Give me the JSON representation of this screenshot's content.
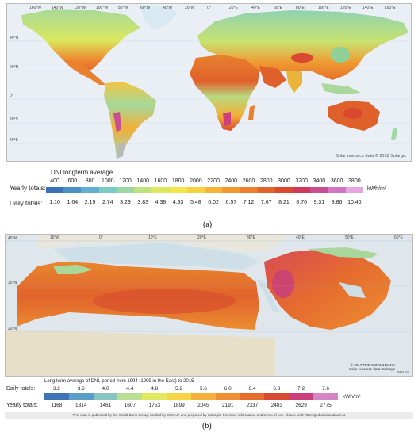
{
  "panel_a": {
    "caption": "(a)",
    "credit": "Solar resource data © 2018 Solargis",
    "legend_title": "DNI longterm average",
    "yearly_label": "Yearly totals:",
    "daily_label": "Daily totals:",
    "unit": "kWh/m²",
    "yearly_values": [
      "400",
      "600",
      "800",
      "1000",
      "1200",
      "1400",
      "1600",
      "1800",
      "2000",
      "2200",
      "2400",
      "2600",
      "2800",
      "3000",
      "3200",
      "3400",
      "3600",
      "3800"
    ],
    "daily_values": [
      "1.10",
      "1.64",
      "2.19",
      "2.74",
      "3.29",
      "3.83",
      "4.38",
      "4.93",
      "5.48",
      "6.02",
      "6.57",
      "7.12",
      "7.67",
      "8.21",
      "8.76",
      "9.31",
      "9.86",
      "10.40"
    ],
    "colors": [
      "#3b6fb6",
      "#4c8fc5",
      "#5fb0cf",
      "#7ccbc6",
      "#9bd8a4",
      "#bde27e",
      "#dbe85e",
      "#f2e64a",
      "#f7d23f",
      "#f6b536",
      "#f19a31",
      "#eb7f2d",
      "#e3642b",
      "#d9482f",
      "#cf3a5c",
      "#c94e93",
      "#d275c2",
      "#e6a6e0"
    ],
    "lat_labels": [
      "40°N",
      "20°N",
      "0°",
      "20°S",
      "40°S"
    ],
    "lon_labels": [
      "160°W",
      "140°W",
      "120°W",
      "100°W",
      "80°W",
      "60°W",
      "40°W",
      "20°W",
      "0°",
      "20°E",
      "40°E",
      "60°E",
      "80°E",
      "100°E",
      "120°E",
      "140°E",
      "160°E"
    ]
  },
  "panel_b": {
    "caption": "(b)",
    "credit": "© 2017 THE WORLD BANK\nSolar resource data: Solargis",
    "scale": "500 km",
    "legend_title": "Long term average of DNI, period from 1994 (1999 in the East) to 2015",
    "daily_label": "Daily totals:",
    "yearly_label": "Yearly totals:",
    "unit": "kWh/m²",
    "daily_values": [
      "3.2",
      "3.6",
      "4.0",
      "4.4",
      "4.8",
      "5.2",
      "5.6",
      "6.0",
      "6.4",
      "6.8",
      "7.2",
      "7.6"
    ],
    "yearly_values": [
      "1168",
      "1314",
      "1461",
      "1607",
      "1753",
      "1899",
      "2045",
      "2191",
      "2337",
      "2483",
      "2629",
      "2775"
    ],
    "colors": [
      "#3e74b5",
      "#5a9dc6",
      "#88c5c0",
      "#b9dd95",
      "#e2e95f",
      "#f6d444",
      "#f4b03a",
      "#ee8f33",
      "#e56d2e",
      "#d84a32",
      "#c9407a",
      "#d784c7"
    ],
    "footnote": "This map is published by the World Bank Group, funded by ESMAP, and prepared by Solargis. For more information and terms of use, please visit: http://globalsolaratlas.info",
    "lat_labels": [
      "40°N",
      "30°N",
      "20°N"
    ],
    "lon_labels": [
      "10°W",
      "0°",
      "10°E",
      "20°E",
      "30°E",
      "40°E",
      "50°E",
      "60°E"
    ]
  }
}
